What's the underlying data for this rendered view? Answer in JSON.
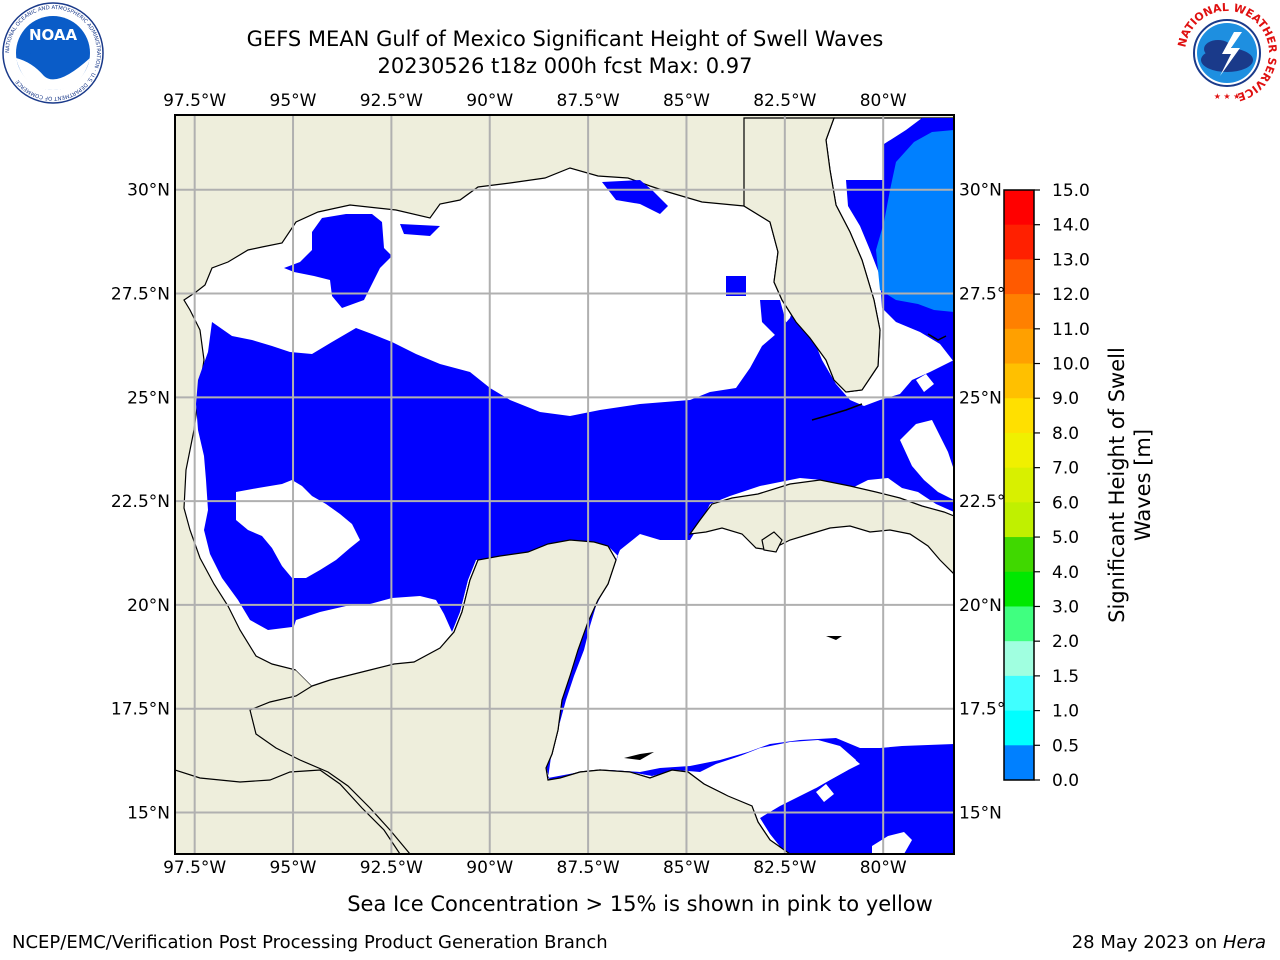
{
  "header": {
    "title_line1": "GEFS MEAN Gulf of Mexico Significant Height of Swell Waves",
    "title_line2": "20230526 t18z 000h fcst   Max: 0.97"
  },
  "logos": {
    "left": "NOAA",
    "left_ring_text": "NATIONAL OCEANIC AND ATMOSPHERIC ADMINISTRATION · U.S. DEPARTMENT OF COMMERCE",
    "right_ring_text": "NATIONAL WEATHER SERVICE"
  },
  "map": {
    "lon_labels": [
      "97.5°W",
      "95°W",
      "92.5°W",
      "90°W",
      "87.5°W",
      "85°W",
      "82.5°W",
      "80°W"
    ],
    "lat_labels": [
      "30°N",
      "27.5°N",
      "25°N",
      "22.5°N",
      "20°N",
      "17.5°N",
      "15°N"
    ],
    "lon_values": [
      -97.5,
      -95,
      -92.5,
      -90,
      -87.5,
      -85,
      -82.5,
      -80
    ],
    "lat_values": [
      30,
      27.5,
      25,
      22.5,
      20,
      17.5,
      15
    ],
    "extent": {
      "lon_min": -98,
      "lon_max": -78.2,
      "lat_min": 14.0,
      "lat_max": 31.8
    },
    "grid": true,
    "land_color": "#eeeedc",
    "ocean_no_swell_color": "#ffffff",
    "swell_0_0p5_color": "#0000ff",
    "swell_0p5_1_color": "#0080ff"
  },
  "colorbar": {
    "label": "Significant Height of Swell Waves [m]",
    "label_line1": "Significant Height of Swell",
    "label_line2": "Waves [m]",
    "ticks": [
      "15.0",
      "14.0",
      "13.0",
      "12.0",
      "11.0",
      "10.0",
      "9.0",
      "8.0",
      "7.0",
      "6.0",
      "5.0",
      "4.0",
      "3.0",
      "2.0",
      "1.5",
      "1.0",
      "0.5",
      "0.0"
    ],
    "colors": [
      "#ff0000",
      "#ff2000",
      "#ff5a00",
      "#ff8000",
      "#ffa000",
      "#ffc000",
      "#ffe000",
      "#f0f000",
      "#d8f000",
      "#c0f000",
      "#40d800",
      "#00e800",
      "#40ff80",
      "#a0ffe0",
      "#40ffff",
      "#00ffff",
      "#0080ff",
      "#0000ff"
    ]
  },
  "caption": "Sea Ice Concentration > 15% is shown in pink to yellow",
  "footer": {
    "left": "NCEP/EMC/Verification Post Processing Product Generation Branch",
    "date": "28 May 2023 on ",
    "machine": "Hera"
  }
}
